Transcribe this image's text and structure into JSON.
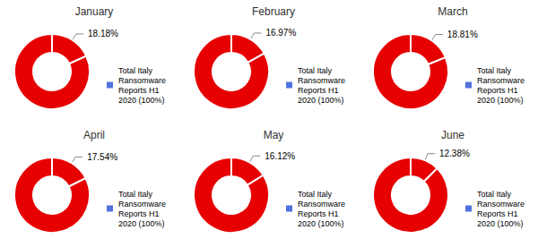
{
  "chart_data": [
    {
      "type": "pie",
      "title": "January",
      "legend": "right",
      "series": [
        {
          "name": "Total Italy\nRansomware\nReports H1\n2020 (100%)",
          "color": "#e60000",
          "values": [
            18.18,
            81.82
          ],
          "value_labels": [
            "18.18%",
            null
          ]
        }
      ]
    },
    {
      "type": "pie",
      "title": "February",
      "legend": "right",
      "series": [
        {
          "name": "Total Italy\nRansomware\nReports H1\n2020 (100%)",
          "color": "#e60000",
          "values": [
            16.97,
            83.03
          ],
          "value_labels": [
            "16.97%",
            null
          ]
        }
      ]
    },
    {
      "type": "pie",
      "title": "March",
      "legend": "right",
      "series": [
        {
          "name": "Total Italy\nRansomware\nReports H1\n2020 (100%)",
          "color": "#e60000",
          "values": [
            18.81,
            81.19
          ],
          "value_labels": [
            "18.81%",
            null
          ]
        }
      ]
    },
    {
      "type": "pie",
      "title": "April",
      "legend": "right",
      "series": [
        {
          "name": "Total Italy\nRansomware\nReports H1\n2020 (100%)",
          "color": "#e60000",
          "values": [
            17.54,
            82.46
          ],
          "value_labels": [
            "17.54%",
            null
          ]
        }
      ]
    },
    {
      "type": "pie",
      "title": "May",
      "legend": "right",
      "series": [
        {
          "name": "Total Italy\nRansomware\nReports H1\n2020 (100%)",
          "color": "#e60000",
          "values": [
            16.12,
            83.88
          ],
          "value_labels": [
            "16.12%",
            null
          ]
        }
      ]
    },
    {
      "type": "pie",
      "title": "June",
      "legend": "right",
      "series": [
        {
          "name": "Total Italy\nRansomware\nReports H1\n2020 (100%)",
          "color": "#e60000",
          "values": [
            12.38,
            87.62
          ],
          "value_labels": [
            "12.38%",
            null
          ]
        }
      ]
    }
  ]
}
